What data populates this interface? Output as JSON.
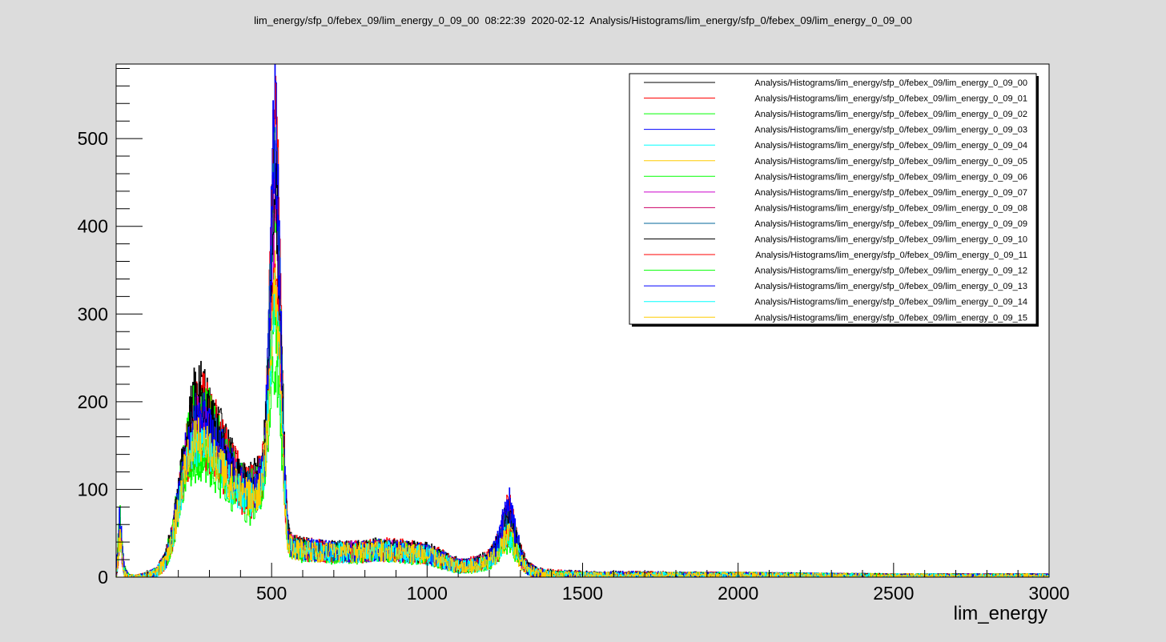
{
  "chart_data": {
    "type": "line",
    "title": "lim_energy/sfp_0/febex_09/lim_energy_0_09_00  08:22:39  2020-02-12  Analysis/Histograms/lim_energy/sfp_0/febex_09/lim_energy_0_09_00",
    "xlabel": "lim_energy",
    "ylabel": "",
    "xlim": [
      0,
      3000
    ],
    "ylim": [
      0,
      585
    ],
    "x_ticks": [
      500,
      1000,
      1500,
      2000,
      2500,
      3000
    ],
    "x_tick_labels": [
      "500",
      "1000",
      "1500",
      "2000",
      "2500",
      "3000"
    ],
    "y_ticks": [
      0,
      100,
      200,
      300,
      400,
      500
    ],
    "y_tick_labels": [
      "0",
      "100",
      "200",
      "300",
      "400",
      "500"
    ],
    "grid": false,
    "legend_position": "top-right",
    "profile_x": [
      0,
      6,
      12,
      20,
      26,
      40,
      60,
      100,
      130,
      160,
      180,
      200,
      220,
      250,
      280,
      300,
      330,
      360,
      400,
      430,
      450,
      470,
      480,
      490,
      500,
      510,
      520,
      530,
      540,
      550,
      560,
      580,
      600,
      650,
      700,
      750,
      800,
      850,
      900,
      950,
      1000,
      1030,
      1060,
      1100,
      1130,
      1160,
      1200,
      1230,
      1250,
      1265,
      1280,
      1300,
      1320,
      1350,
      1400,
      1500,
      2000,
      2500,
      3000
    ],
    "series": [
      {
        "name": "Analysis/Histograms/lim_energy/sfp_0/febex_09/lim_energy_0_09_00",
        "color": "#000000",
        "profile": [
          2,
          30,
          70,
          30,
          8,
          1,
          0,
          2,
          6,
          22,
          50,
          95,
          145,
          210,
          215,
          200,
          170,
          145,
          120,
          110,
          115,
          130,
          165,
          260,
          400,
          490,
          440,
          300,
          150,
          60,
          38,
          35,
          33,
          32,
          30,
          30,
          30,
          33,
          32,
          30,
          28,
          25,
          20,
          14,
          14,
          16,
          22,
          40,
          65,
          75,
          55,
          28,
          12,
          6,
          4,
          3,
          2,
          1,
          1
        ]
      },
      {
        "name": "Analysis/Histograms/lim_energy/sfp_0/febex_09/lim_energy_0_09_01",
        "color": "#ff0000",
        "profile": [
          2,
          28,
          65,
          28,
          7,
          1,
          0,
          2,
          6,
          20,
          45,
          90,
          140,
          200,
          210,
          195,
          165,
          140,
          115,
          105,
          110,
          125,
          160,
          280,
          440,
          550,
          480,
          320,
          150,
          60,
          38,
          35,
          33,
          32,
          30,
          30,
          30,
          33,
          32,
          30,
          28,
          25,
          20,
          14,
          14,
          16,
          22,
          42,
          70,
          80,
          58,
          28,
          12,
          6,
          4,
          3,
          2,
          1,
          1
        ]
      },
      {
        "name": "Analysis/Histograms/lim_energy/sfp_0/febex_09/lim_energy_0_09_02",
        "color": "#00ff00",
        "profile": [
          2,
          32,
          80,
          32,
          8,
          1,
          0,
          2,
          6,
          22,
          50,
          92,
          140,
          190,
          200,
          185,
          160,
          135,
          110,
          100,
          105,
          120,
          150,
          230,
          340,
          420,
          370,
          260,
          130,
          55,
          36,
          33,
          31,
          30,
          29,
          29,
          29,
          31,
          30,
          28,
          26,
          23,
          18,
          13,
          13,
          15,
          20,
          35,
          55,
          60,
          45,
          24,
          10,
          5,
          3,
          2,
          2,
          1,
          1
        ]
      },
      {
        "name": "Analysis/Histograms/lim_energy/sfp_0/febex_09/lim_energy_0_09_03",
        "color": "#0000ff",
        "profile": [
          2,
          35,
          78,
          30,
          8,
          1,
          0,
          2,
          6,
          20,
          45,
          88,
          135,
          185,
          190,
          178,
          155,
          130,
          110,
          100,
          105,
          122,
          158,
          285,
          450,
          560,
          470,
          300,
          140,
          58,
          37,
          34,
          32,
          31,
          29,
          29,
          29,
          32,
          31,
          29,
          27,
          24,
          19,
          13,
          13,
          15,
          21,
          42,
          72,
          82,
          60,
          28,
          12,
          6,
          4,
          3,
          2,
          1,
          1
        ]
      },
      {
        "name": "Analysis/Histograms/lim_energy/sfp_0/febex_09/lim_energy_0_09_04",
        "color": "#00ffff",
        "profile": [
          2,
          22,
          50,
          22,
          6,
          1,
          0,
          2,
          5,
          18,
          40,
          80,
          125,
          160,
          165,
          155,
          135,
          115,
          100,
          92,
          97,
          110,
          140,
          210,
          280,
          330,
          300,
          220,
          115,
          50,
          34,
          32,
          30,
          29,
          28,
          28,
          28,
          30,
          29,
          27,
          25,
          22,
          17,
          12,
          12,
          14,
          18,
          30,
          45,
          50,
          38,
          20,
          9,
          5,
          3,
          2,
          2,
          1,
          1
        ]
      },
      {
        "name": "Analysis/Histograms/lim_energy/sfp_0/febex_09/lim_energy_0_09_05",
        "color": "#ffcc00",
        "profile": [
          2,
          20,
          45,
          20,
          5,
          1,
          0,
          2,
          5,
          18,
          40,
          78,
          120,
          155,
          160,
          150,
          130,
          112,
          98,
          90,
          95,
          108,
          135,
          195,
          260,
          340,
          290,
          210,
          110,
          48,
          34,
          32,
          30,
          29,
          28,
          28,
          28,
          30,
          29,
          27,
          25,
          22,
          17,
          12,
          12,
          14,
          18,
          28,
          42,
          46,
          35,
          19,
          9,
          5,
          3,
          2,
          2,
          1,
          1
        ]
      },
      {
        "name": "Analysis/Histograms/lim_energy/sfp_0/febex_09/lim_energy_0_09_06",
        "color": "#00ff00",
        "profile": [
          2,
          25,
          60,
          25,
          6,
          1,
          0,
          2,
          5,
          18,
          40,
          75,
          110,
          130,
          135,
          128,
          115,
          100,
          85,
          78,
          82,
          95,
          120,
          175,
          220,
          240,
          215,
          165,
          95,
          45,
          32,
          30,
          28,
          27,
          26,
          26,
          26,
          28,
          27,
          25,
          23,
          20,
          16,
          11,
          11,
          13,
          16,
          26,
          38,
          42,
          32,
          17,
          8,
          4,
          3,
          2,
          2,
          1,
          1
        ]
      },
      {
        "name": "Analysis/Histograms/lim_energy/sfp_0/febex_09/lim_energy_0_09_07",
        "color": "#cc00cc",
        "profile": [
          2,
          26,
          58,
          24,
          6,
          1,
          0,
          2,
          6,
          20,
          44,
          85,
          130,
          175,
          180,
          168,
          148,
          125,
          105,
          96,
          100,
          115,
          148,
          245,
          350,
          410,
          360,
          250,
          125,
          54,
          36,
          33,
          31,
          30,
          29,
          29,
          29,
          31,
          30,
          28,
          26,
          23,
          18,
          13,
          13,
          15,
          20,
          34,
          52,
          58,
          44,
          23,
          10,
          5,
          3,
          2,
          2,
          1,
          1
        ]
      },
      {
        "name": "Analysis/Histograms/lim_energy/sfp_0/febex_09/lim_energy_0_09_08",
        "color": "#cc0066",
        "profile": [
          2,
          28,
          60,
          26,
          7,
          1,
          0,
          2,
          6,
          20,
          45,
          85,
          130,
          175,
          180,
          168,
          148,
          125,
          106,
          97,
          102,
          117,
          150,
          250,
          380,
          470,
          400,
          270,
          130,
          56,
          36,
          33,
          31,
          30,
          29,
          29,
          29,
          31,
          30,
          28,
          26,
          23,
          18,
          13,
          13,
          15,
          20,
          36,
          58,
          65,
          48,
          25,
          11,
          5,
          3,
          2,
          2,
          1,
          1
        ]
      },
      {
        "name": "Analysis/Histograms/lim_energy/sfp_0/febex_09/lim_energy_0_09_09",
        "color": "#006699",
        "profile": [
          2,
          27,
          62,
          26,
          7,
          1,
          0,
          2,
          6,
          20,
          45,
          86,
          132,
          178,
          182,
          170,
          150,
          127,
          107,
          98,
          103,
          118,
          152,
          255,
          390,
          480,
          410,
          275,
          132,
          57,
          36,
          33,
          31,
          30,
          29,
          29,
          29,
          31,
          30,
          28,
          26,
          23,
          18,
          13,
          13,
          15,
          20,
          37,
          60,
          68,
          50,
          26,
          11,
          5,
          3,
          2,
          2,
          1,
          1
        ]
      },
      {
        "name": "Analysis/Histograms/lim_energy/sfp_0/febex_09/lim_energy_0_09_10",
        "color": "#000000",
        "profile": [
          2,
          24,
          55,
          24,
          6,
          1,
          0,
          2,
          6,
          22,
          48,
          90,
          138,
          190,
          195,
          182,
          158,
          134,
          112,
          102,
          107,
          122,
          155,
          245,
          360,
          440,
          380,
          265,
          130,
          56,
          36,
          34,
          32,
          31,
          30,
          30,
          30,
          32,
          31,
          29,
          27,
          24,
          19,
          13,
          13,
          15,
          21,
          38,
          60,
          68,
          50,
          26,
          11,
          5,
          3,
          2,
          2,
          1,
          1
        ]
      },
      {
        "name": "Analysis/Histograms/lim_energy/sfp_0/febex_09/lim_energy_0_09_11",
        "color": "#ff0000",
        "profile": [
          2,
          24,
          52,
          22,
          6,
          1,
          0,
          2,
          5,
          18,
          40,
          78,
          118,
          150,
          152,
          142,
          126,
          108,
          94,
          86,
          90,
          104,
          132,
          200,
          280,
          330,
          290,
          210,
          110,
          48,
          34,
          32,
          30,
          29,
          28,
          28,
          28,
          30,
          29,
          27,
          25,
          22,
          17,
          12,
          12,
          14,
          18,
          30,
          46,
          52,
          40,
          21,
          9,
          5,
          3,
          2,
          2,
          1,
          1
        ]
      },
      {
        "name": "Analysis/Histograms/lim_energy/sfp_0/febex_09/lim_energy_0_09_12",
        "color": "#00ff00",
        "profile": [
          2,
          30,
          75,
          30,
          8,
          1,
          0,
          2,
          5,
          18,
          40,
          76,
          115,
          140,
          145,
          136,
          120,
          104,
          90,
          82,
          86,
          100,
          128,
          190,
          270,
          300,
          270,
          200,
          105,
          47,
          33,
          31,
          29,
          28,
          27,
          27,
          27,
          29,
          28,
          26,
          24,
          21,
          16,
          11,
          11,
          13,
          17,
          28,
          44,
          50,
          38,
          20,
          9,
          4,
          3,
          2,
          2,
          1,
          1
        ]
      },
      {
        "name": "Analysis/Histograms/lim_energy/sfp_0/febex_09/lim_energy_0_09_13",
        "color": "#0000ff",
        "profile": [
          2,
          34,
          72,
          28,
          7,
          1,
          0,
          2,
          6,
          20,
          44,
          84,
          128,
          170,
          175,
          164,
          145,
          123,
          104,
          95,
          100,
          115,
          148,
          250,
          380,
          470,
          400,
          270,
          130,
          56,
          36,
          33,
          31,
          30,
          29,
          29,
          29,
          31,
          30,
          28,
          26,
          23,
          18,
          13,
          13,
          15,
          21,
          40,
          68,
          78,
          56,
          27,
          11,
          5,
          3,
          2,
          2,
          1,
          1
        ]
      },
      {
        "name": "Analysis/Histograms/lim_energy/sfp_0/febex_09/lim_energy_0_09_14",
        "color": "#00ffff",
        "profile": [
          2,
          22,
          48,
          20,
          5,
          1,
          0,
          2,
          5,
          18,
          40,
          78,
          120,
          150,
          155,
          145,
          128,
          110,
          96,
          88,
          92,
          106,
          134,
          200,
          270,
          320,
          285,
          205,
          108,
          48,
          34,
          32,
          30,
          29,
          28,
          28,
          28,
          30,
          29,
          27,
          25,
          22,
          17,
          12,
          12,
          14,
          18,
          29,
          44,
          48,
          37,
          20,
          9,
          5,
          3,
          2,
          2,
          1,
          1
        ]
      },
      {
        "name": "Analysis/Histograms/lim_energy/sfp_0/febex_09/lim_energy_0_09_15",
        "color": "#ffcc00",
        "profile": [
          2,
          20,
          44,
          20,
          5,
          1,
          0,
          2,
          5,
          18,
          40,
          78,
          120,
          152,
          158,
          148,
          130,
          112,
          98,
          90,
          95,
          108,
          135,
          195,
          255,
          330,
          285,
          205,
          108,
          48,
          34,
          32,
          30,
          29,
          28,
          28,
          28,
          30,
          29,
          27,
          25,
          22,
          17,
          12,
          12,
          14,
          18,
          28,
          42,
          46,
          35,
          19,
          9,
          5,
          3,
          2,
          2,
          1,
          1
        ]
      }
    ]
  }
}
